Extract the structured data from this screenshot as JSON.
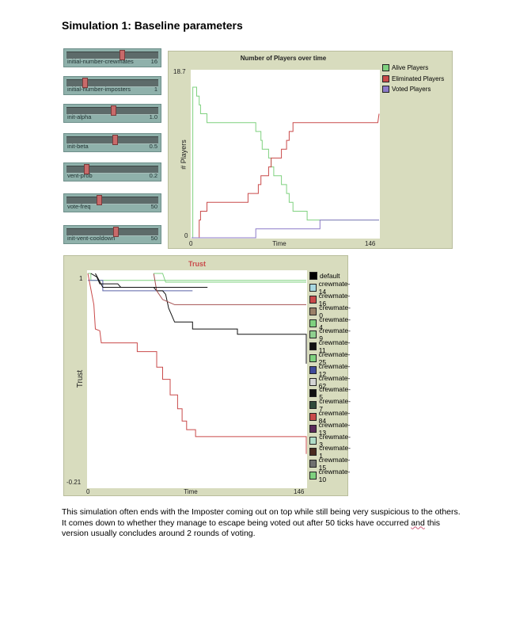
{
  "heading": "Simulation 1: Baseline parameters",
  "sliders": [
    {
      "label": "initial-number-crewmates",
      "value": "16",
      "fraction": 0.6
    },
    {
      "label": "initial-number-imposters",
      "value": "1",
      "fraction": 0.18
    },
    {
      "label": "init-alpha",
      "value": "1.0",
      "fraction": 0.5
    },
    {
      "label": "init-beta",
      "value": "0.5",
      "fraction": 0.52
    },
    {
      "label": "vent-prob",
      "value": "0.2",
      "fraction": 0.2
    },
    {
      "label": "vote-freq",
      "value": "50",
      "fraction": 0.34
    },
    {
      "label": "init-vent-cooldown",
      "value": "50",
      "fraction": 0.53
    }
  ],
  "players_chart": {
    "title": "Number of Players over time",
    "ylabel": "# Players",
    "xlabel": "Time",
    "ymax_label": "18.7",
    "ymin_label": "0",
    "xmin_label": "0",
    "xmax_label": "146",
    "legend": [
      {
        "name": "Alive Players",
        "color": "#7fd17f"
      },
      {
        "name": "Eliminated Players",
        "color": "#c94a4a"
      },
      {
        "name": "Voted Players",
        "color": "#8c7ac8"
      }
    ]
  },
  "chart_data": [
    {
      "type": "line",
      "title": "Number of Players over time",
      "xlabel": "Time",
      "ylabel": "# Players",
      "xlim": [
        0,
        146
      ],
      "ylim": [
        0,
        18.7
      ],
      "legend_position": "right",
      "series": [
        {
          "name": "Alive Players",
          "color": "#7fd17f",
          "points": [
            [
              0,
              0
            ],
            [
              1,
              0
            ],
            [
              1,
              17
            ],
            [
              4,
              17
            ],
            [
              4,
              16
            ],
            [
              6,
              16
            ],
            [
              6,
              15
            ],
            [
              7,
              15
            ],
            [
              7,
              14
            ],
            [
              12,
              14
            ],
            [
              12,
              13
            ],
            [
              50,
              13
            ],
            [
              50,
              12
            ],
            [
              54,
              12
            ],
            [
              54,
              11
            ],
            [
              55,
              11
            ],
            [
              55,
              10
            ],
            [
              60,
              10
            ],
            [
              60,
              9
            ],
            [
              62,
              9
            ],
            [
              62,
              8
            ],
            [
              64,
              8
            ],
            [
              64,
              7
            ],
            [
              70,
              7
            ],
            [
              70,
              6
            ],
            [
              74,
              6
            ],
            [
              74,
              5
            ],
            [
              76,
              5
            ],
            [
              76,
              4
            ],
            [
              79,
              4
            ],
            [
              79,
              3
            ],
            [
              90,
              3
            ],
            [
              90,
              2
            ],
            [
              146,
              2
            ]
          ]
        },
        {
          "name": "Eliminated Players",
          "color": "#c94a4a",
          "points": [
            [
              0,
              0
            ],
            [
              6,
              0
            ],
            [
              6,
              2
            ],
            [
              7,
              2
            ],
            [
              7,
              3
            ],
            [
              12,
              3
            ],
            [
              12,
              4
            ],
            [
              44,
              4
            ],
            [
              44,
              5
            ],
            [
              52,
              5
            ],
            [
              52,
              6
            ],
            [
              54,
              6
            ],
            [
              54,
              7
            ],
            [
              60,
              7
            ],
            [
              60,
              8
            ],
            [
              62,
              8
            ],
            [
              62,
              9
            ],
            [
              70,
              9
            ],
            [
              70,
              10
            ],
            [
              74,
              10
            ],
            [
              74,
              11
            ],
            [
              76,
              11
            ],
            [
              76,
              12
            ],
            [
              79,
              12
            ],
            [
              79,
              13
            ],
            [
              145,
              13
            ],
            [
              146,
              14
            ]
          ]
        },
        {
          "name": "Voted Players",
          "color": "#8c7ac8",
          "points": [
            [
              0,
              0
            ],
            [
              50,
              0
            ],
            [
              50,
              1
            ],
            [
              100,
              1
            ],
            [
              100,
              2
            ],
            [
              146,
              2
            ]
          ]
        }
      ]
    },
    {
      "type": "line",
      "title": "Trust",
      "xlabel": "Time",
      "ylabel": "Trust",
      "xlim": [
        0,
        146
      ],
      "ylim": [
        -0.21,
        1
      ],
      "legend_position": "right",
      "series": [
        {
          "name": "crewmate-4",
          "color": "#7fd17f",
          "points": [
            [
              0,
              1
            ],
            [
              2,
              1
            ],
            [
              2,
              0.96
            ],
            [
              146,
              0.96
            ]
          ]
        },
        {
          "name": "crewmate-12",
          "color": "#5a63a8",
          "points": [
            [
              0,
              0.96
            ],
            [
              10,
              0.96
            ],
            [
              10,
              0.9
            ],
            [
              70,
              0.9
            ]
          ]
        },
        {
          "name": "crewmate-16",
          "color": "#c94a4a",
          "points": [
            [
              0,
              1
            ],
            [
              4,
              0.82
            ],
            [
              5,
              0.68
            ],
            [
              8,
              0.67
            ],
            [
              9,
              0.6
            ],
            [
              25,
              0.6
            ],
            [
              25,
              0.6
            ],
            [
              33,
              0.6
            ],
            [
              33,
              0.55
            ],
            [
              46,
              0.55
            ],
            [
              46,
              0.46
            ],
            [
              50,
              0.46
            ],
            [
              50,
              0.39
            ],
            [
              55,
              0.39
            ],
            [
              55,
              0.3
            ],
            [
              60,
              0.3
            ],
            [
              60,
              0.22
            ],
            [
              63,
              0.22
            ],
            [
              63,
              0.15
            ],
            [
              66,
              0.15
            ],
            [
              66,
              0.1
            ],
            [
              72,
              0.1
            ],
            [
              72,
              0.06
            ],
            [
              146,
              0.06
            ],
            [
              146,
              -0.04
            ]
          ]
        },
        {
          "name": "crewmate-11",
          "color": "#111111",
          "points": [
            [
              2,
              1
            ],
            [
              6,
              0.98
            ],
            [
              8,
              0.94
            ],
            [
              20,
              0.94
            ],
            [
              22,
              0.92
            ],
            [
              44,
              0.92
            ],
            [
              46,
              0.9
            ],
            [
              50,
              0.9
            ],
            [
              52,
              0.88
            ],
            [
              54,
              0.8
            ],
            [
              56,
              0.76
            ],
            [
              58,
              0.72
            ],
            [
              70,
              0.72
            ],
            [
              70,
              0.68
            ],
            [
              100,
              0.68
            ],
            [
              100,
              0.65
            ],
            [
              146,
              0.65
            ],
            [
              146,
              0.48
            ]
          ]
        },
        {
          "name": "crewmate-84",
          "color": "#a45050",
          "points": [
            [
              44,
              1
            ],
            [
              46,
              0.9
            ],
            [
              50,
              0.85
            ],
            [
              58,
              0.82
            ],
            [
              146,
              0.82
            ]
          ]
        },
        {
          "name": "crewmate-25",
          "color": "#7fd17f",
          "points": [
            [
              44,
              1
            ],
            [
              50,
              1
            ],
            [
              52,
              0.95
            ],
            [
              60,
              0.95
            ],
            [
              146,
              0.95
            ]
          ]
        },
        {
          "name": "crewmate-5",
          "color": "#111111",
          "points": [
            [
              5,
              1
            ],
            [
              10,
              0.92
            ],
            [
              80,
              0.92
            ]
          ]
        }
      ]
    }
  ],
  "trust_chart": {
    "title": "Trust",
    "ylabel": "Trust",
    "xlabel": "Time",
    "ymax_label": "1",
    "ymin_label": "-0.21",
    "xmin_label": "0",
    "xmax_label": "146",
    "legend": [
      {
        "name": "default",
        "color": "#000000"
      },
      {
        "name": "crewmate-14",
        "color": "#a8d8e0"
      },
      {
        "name": "crewmate-16",
        "color": "#c94a4a"
      },
      {
        "name": "crewmate-0",
        "color": "#9a8068"
      },
      {
        "name": "crewmate-4",
        "color": "#7fd17f"
      },
      {
        "name": "crewmate-9",
        "color": "#8fd08f"
      },
      {
        "name": "crewmate-11",
        "color": "#111111"
      },
      {
        "name": "crewmate-25",
        "color": "#7fd17f"
      },
      {
        "name": "crewmate-12",
        "color": "#3f4a9a"
      },
      {
        "name": "crewmate-62",
        "color": "#d4d4d4"
      },
      {
        "name": "crewmate-5",
        "color": "#111111"
      },
      {
        "name": "crewmate-7",
        "color": "#2f4a3a"
      },
      {
        "name": "crewmate-84",
        "color": "#c94a4a"
      },
      {
        "name": "crewmate-13",
        "color": "#5a2a5a"
      },
      {
        "name": "crewmate-3",
        "color": "#b0dcc8"
      },
      {
        "name": "crewmate-1",
        "color": "#4a2a20"
      },
      {
        "name": "crewmate-15",
        "color": "#707070"
      },
      {
        "name": "crewmate-10",
        "color": "#7fd17f"
      }
    ]
  },
  "paragraph": {
    "part1": "This simulation often ends with the Imposter coming out on top while still being very suspicious to the others. It comes down to whether they manage to escape being voted out after 50 ticks have occurred ",
    "squiggle": "and",
    "part2": " this version usually concludes around 2 rounds of voting."
  }
}
